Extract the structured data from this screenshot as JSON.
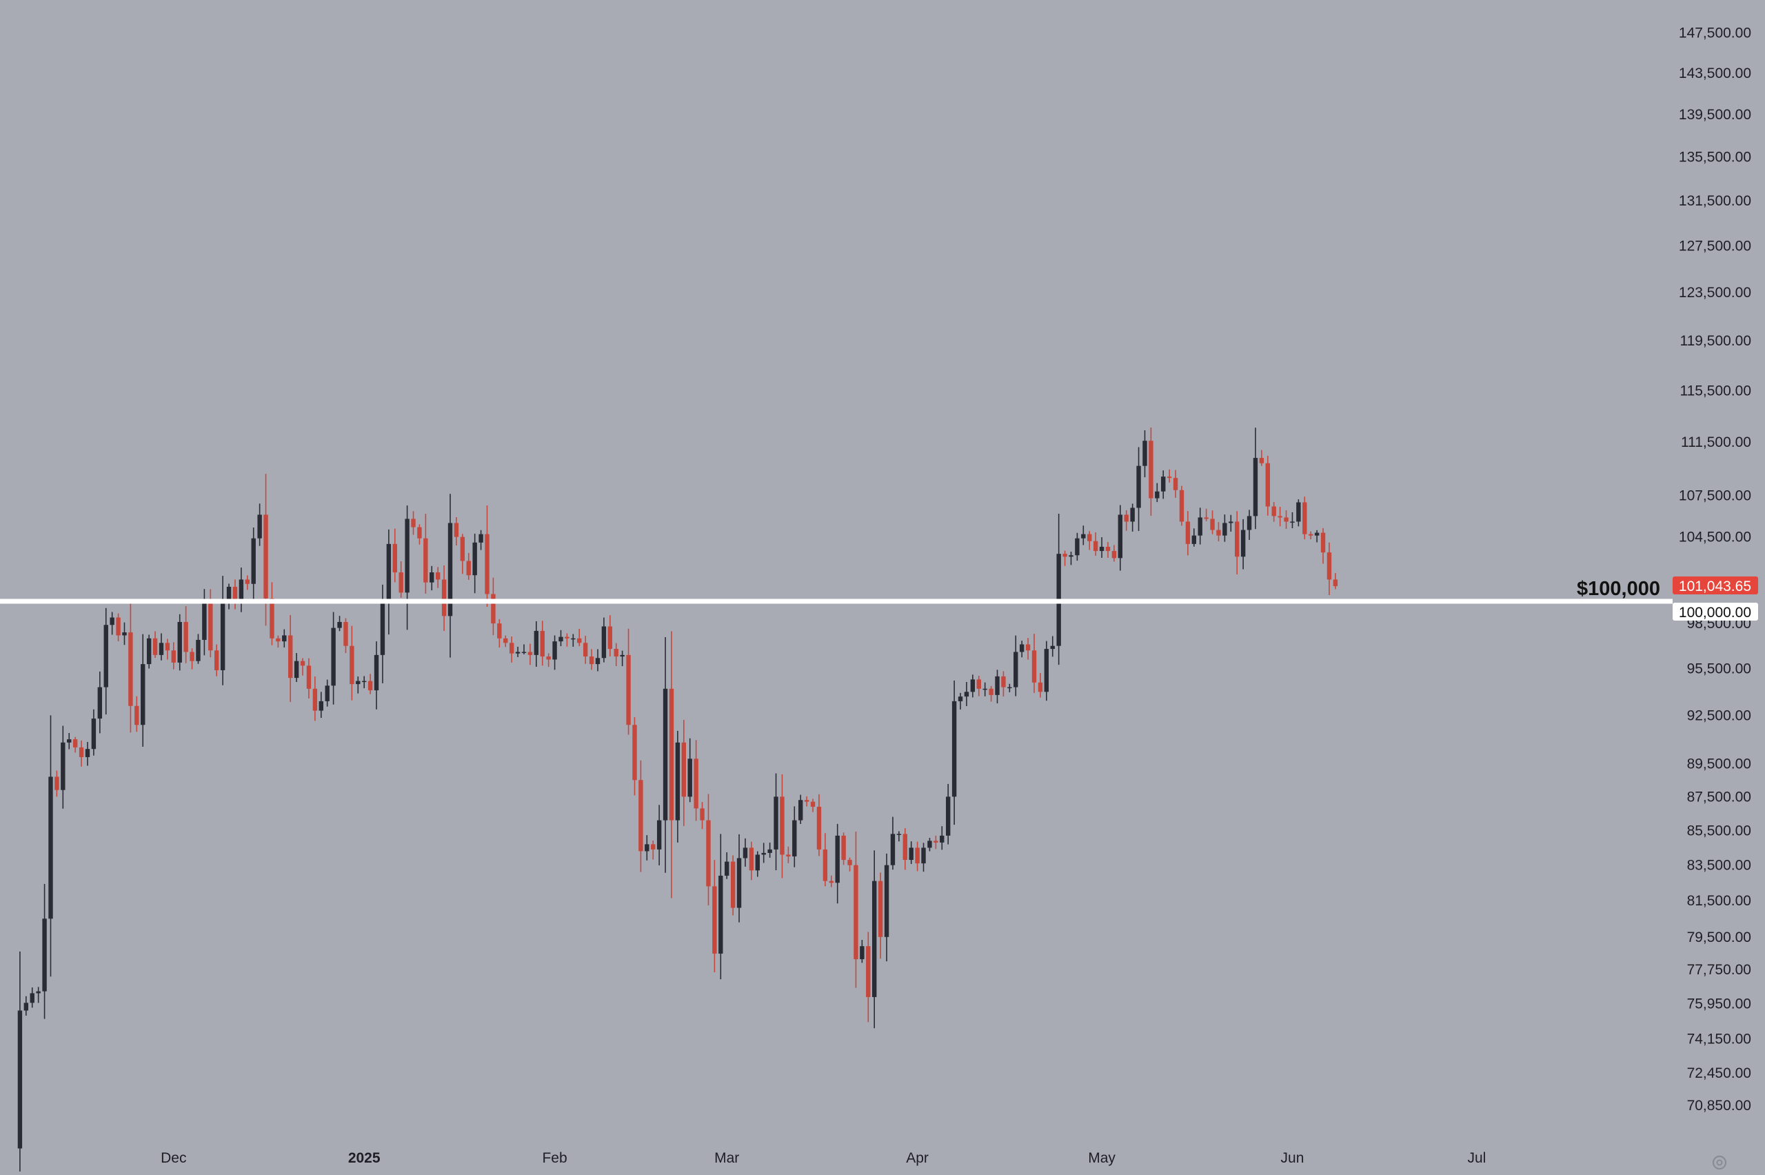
{
  "chart_data": {
    "type": "candlestick",
    "symbol_hint": "",
    "y_scale": "log",
    "ylim": [
      69500,
      149000
    ],
    "x_range": [
      "2024-11-05",
      "2025-07-12"
    ],
    "grid": false,
    "colors": {
      "background": "#a9abb4",
      "up": "#2a2c35",
      "down": "#c6473c",
      "level_line": "#ffffff",
      "last_price_tag": "#e5453b"
    },
    "y_ticks": [
      {
        "value": 147500,
        "label": "147,500.00"
      },
      {
        "value": 143500,
        "label": "143,500.00"
      },
      {
        "value": 139500,
        "label": "139,500.00"
      },
      {
        "value": 135500,
        "label": "135,500.00"
      },
      {
        "value": 131500,
        "label": "131,500.00"
      },
      {
        "value": 127500,
        "label": "127,500.00"
      },
      {
        "value": 123500,
        "label": "123,500.00"
      },
      {
        "value": 119500,
        "label": "119,500.00"
      },
      {
        "value": 115500,
        "label": "115,500.00"
      },
      {
        "value": 111500,
        "label": "111,500.00"
      },
      {
        "value": 107500,
        "label": "107,500.00"
      },
      {
        "value": 104500,
        "label": "104,500.00"
      },
      {
        "value": 98500,
        "label": "98,500.00"
      },
      {
        "value": 95500,
        "label": "95,500.00"
      },
      {
        "value": 92500,
        "label": "92,500.00"
      },
      {
        "value": 89500,
        "label": "89,500.00"
      },
      {
        "value": 87500,
        "label": "87,500.00"
      },
      {
        "value": 85500,
        "label": "85,500.00"
      },
      {
        "value": 83500,
        "label": "83,500.00"
      },
      {
        "value": 81500,
        "label": "81,500.00"
      },
      {
        "value": 79500,
        "label": "79,500.00"
      },
      {
        "value": 77750,
        "label": "77,750.00"
      },
      {
        "value": 75950,
        "label": "75,950.00"
      },
      {
        "value": 74150,
        "label": "74,150.00"
      },
      {
        "value": 72450,
        "label": "72,450.00"
      },
      {
        "value": 70850,
        "label": "70,850.00"
      }
    ],
    "x_ticks": [
      {
        "date": "2024-12-01",
        "label": "Dec",
        "bold": false
      },
      {
        "date": "2025-01-01",
        "label": "2025",
        "bold": true
      },
      {
        "date": "2025-02-01",
        "label": "Feb",
        "bold": false
      },
      {
        "date": "2025-03-01",
        "label": "Mar",
        "bold": false
      },
      {
        "date": "2025-04-01",
        "label": "Apr",
        "bold": false
      },
      {
        "date": "2025-05-01",
        "label": "May",
        "bold": false
      },
      {
        "date": "2025-06-01",
        "label": "Jun",
        "bold": false
      },
      {
        "date": "2025-07-01",
        "label": "Jul",
        "bold": false
      }
    ],
    "horizontal_level": {
      "value": 100000,
      "label": "$100,000",
      "axis_label": "100,000.00"
    },
    "last_price": {
      "value": 101043.65,
      "label": "101,043.65"
    },
    "series": [
      {
        "start_date": "2024-11-05",
        "closes": [
          68800,
          75600,
          76000,
          76500,
          76600,
          80500,
          88700,
          87900,
          90800,
          91000,
          90500,
          89900,
          90400,
          92300,
          94300,
          98400,
          98900,
          97700,
          97900,
          93100,
          91900,
          95800,
          97500,
          96400,
          97200,
          96700,
          95900,
          98600,
          96600,
          96000,
          97400,
          99900,
          96700,
          95400,
          100000,
          101000,
          100000,
          101500,
          101200,
          104400,
          106100,
          100200,
          97500,
          97300,
          97700,
          94900,
          96000,
          95700,
          94200,
          92800,
          93400,
          94400,
          98200,
          98600,
          97000,
          94500,
          94700,
          94700,
          94100,
          96400,
          99900,
          104000,
          102000,
          100600,
          105800,
          105200,
          104400,
          101300,
          102000,
          101500,
          99000,
          105500,
          104500,
          102800,
          101800,
          104100,
          104700,
          100500,
          98500,
          97500,
          97200,
          96500,
          96600,
          96600,
          96400,
          98000,
          96300,
          96100,
          97300,
          97600,
          97500,
          97500,
          97200,
          96300,
          95800,
          96200,
          98300,
          96800,
          96300,
          96400,
          91900,
          88500,
          84300,
          84700,
          84400,
          86100,
          94200,
          86100,
          90800,
          87500,
          89800,
          86800,
          86100,
          82300,
          78600,
          82900,
          83700,
          81100,
          83900,
          84500,
          83200,
          84100,
          84200,
          84400,
          87500,
          84100,
          84000,
          86100,
          87300,
          87200,
          86900,
          84400,
          82600,
          82500,
          85200,
          83800,
          83500,
          78300,
          79000,
          76300,
          82600,
          79500,
          83500,
          85300,
          85300,
          83800,
          84500,
          83600,
          84500,
          84900,
          84800,
          85200,
          87500,
          93400,
          93700,
          94000,
          94800,
          94200,
          94200,
          93800,
          95000,
          94300,
          94300,
          96600,
          97100,
          96700,
          94600,
          94000,
          96800,
          97000,
          103300,
          103100,
          103200,
          104400,
          104700,
          104200,
          103500,
          103800,
          103500,
          103000,
          106100,
          105600,
          106600,
          109700,
          111600,
          107300,
          107800,
          108900,
          108800,
          107900,
          105600,
          104000,
          104600,
          105900,
          105800,
          105000,
          104600,
          105500,
          105600,
          103100,
          105000,
          106000,
          110300,
          109900,
          106700,
          106000,
          105900,
          105600,
          105600,
          107000,
          104700,
          104600,
          104800,
          103400,
          101500,
          101043.65
        ]
      }
    ]
  }
}
